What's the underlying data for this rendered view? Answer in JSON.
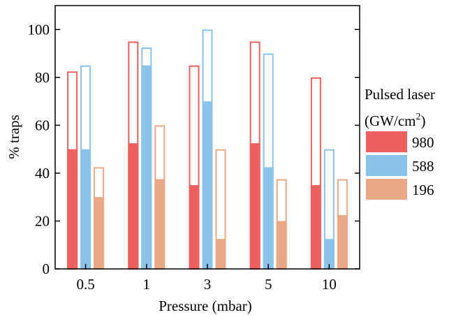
{
  "chart_data": {
    "type": "bar",
    "title": "",
    "xlabel": "Pressure (mbar)",
    "ylabel": "% traps",
    "ylim": [
      0,
      110
    ],
    "yticks": [
      0,
      20,
      40,
      60,
      80,
      100
    ],
    "categories": [
      "0.5",
      "1",
      "3",
      "5",
      "10"
    ],
    "grid": false,
    "legend": {
      "title_line1": "Pulsed laser",
      "title_line2_base": "(GW/cm",
      "title_line2_sup": "2",
      "title_line2_end": ")",
      "placement": "right"
    },
    "series": [
      {
        "name": "980",
        "color": "#ee5f5f",
        "filled_values": [
          50,
          52.5,
          35,
          52.5,
          35
        ],
        "outline_values": [
          82.5,
          95,
          85,
          95,
          80
        ]
      },
      {
        "name": "588",
        "color": "#8cc3ea",
        "filled_values": [
          50,
          85,
          70,
          42.5,
          12.5
        ],
        "outline_values": [
          85,
          92.5,
          100,
          90,
          50
        ]
      },
      {
        "name": "196",
        "color": "#eaa986",
        "filled_values": [
          30,
          37.5,
          12.5,
          20,
          22.5
        ],
        "outline_values": [
          42.5,
          60,
          50,
          37.5,
          37.5
        ]
      }
    ]
  }
}
